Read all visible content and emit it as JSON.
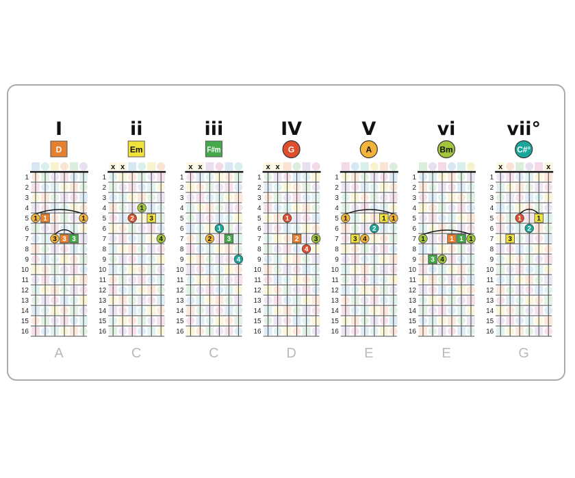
{
  "colors": {
    "A": "#f2b53a",
    "D": "#e6802e",
    "Em": "#f0e23b",
    "Fsm": "#45a84a",
    "G": "#df4f2d",
    "Bm": "#a2c53d",
    "Cdim": "#1ba69a",
    "border": "#a9a9a9",
    "key": "#b9b9b9"
  },
  "fret_numbers": [
    "1",
    "2",
    "3",
    "4",
    "5",
    "6",
    "7",
    "8",
    "9",
    "10",
    "11",
    "12",
    "13",
    "14",
    "15",
    "16"
  ],
  "chords": [
    {
      "numeral": "I",
      "name": "D",
      "shape": "square",
      "color": "D",
      "muted": [],
      "key": "A",
      "barres": [
        [
          5,
          1,
          6
        ],
        [
          7,
          3,
          5
        ]
      ],
      "notes": [
        [
          5,
          1,
          "circle",
          "A",
          "1"
        ],
        [
          5,
          2,
          "square",
          "D",
          "1"
        ],
        [
          5,
          6,
          "circle",
          "A",
          "1"
        ],
        [
          7,
          3,
          "circle",
          "A",
          "3"
        ],
        [
          7,
          4,
          "square",
          "D",
          "3"
        ],
        [
          7,
          5,
          "square",
          "Fsm",
          "3"
        ]
      ]
    },
    {
      "numeral": "ii",
      "name": "Em",
      "shape": "square",
      "color": "Em",
      "muted": [
        1,
        2
      ],
      "key": "C",
      "barres": [],
      "notes": [
        [
          4,
          4,
          "circle",
          "Bm",
          "1"
        ],
        [
          5,
          3,
          "circle",
          "G",
          "2"
        ],
        [
          5,
          5,
          "square",
          "Em",
          "3"
        ],
        [
          7,
          6,
          "circle",
          "Bm",
          "4"
        ]
      ]
    },
    {
      "numeral": "iii",
      "name": "F#m",
      "shape": "square",
      "color": "Fsm",
      "muted": [
        1,
        2
      ],
      "key": "C",
      "barres": [],
      "notes": [
        [
          6,
          4,
          "circle",
          "Cdim",
          "1"
        ],
        [
          7,
          3,
          "circle",
          "A",
          "2"
        ],
        [
          7,
          5,
          "square",
          "Fsm",
          "3"
        ],
        [
          9,
          6,
          "circle",
          "Cdim",
          "4"
        ]
      ]
    },
    {
      "numeral": "IV",
      "name": "G",
      "shape": "circle",
      "color": "G",
      "muted": [
        1,
        2
      ],
      "key": "D",
      "barres": [],
      "notes": [
        [
          5,
          3,
          "circle",
          "G",
          "1"
        ],
        [
          7,
          4,
          "square",
          "D",
          "2"
        ],
        [
          7,
          6,
          "circle",
          "Bm",
          "3"
        ],
        [
          8,
          5,
          "circle",
          "G",
          "4"
        ]
      ]
    },
    {
      "numeral": "V",
      "name": "A",
      "shape": "circle",
      "color": "A",
      "muted": [],
      "key": "E",
      "barres": [
        [
          5,
          1,
          6
        ]
      ],
      "notes": [
        [
          5,
          1,
          "circle",
          "A",
          "1"
        ],
        [
          5,
          5,
          "square",
          "Em",
          "1"
        ],
        [
          5,
          6,
          "circle",
          "A",
          "1"
        ],
        [
          6,
          4,
          "circle",
          "Cdim",
          "2"
        ],
        [
          7,
          2,
          "square",
          "Em",
          "3"
        ],
        [
          7,
          3,
          "circle",
          "A",
          "4"
        ]
      ]
    },
    {
      "numeral": "vi",
      "name": "Bm",
      "shape": "circle",
      "color": "Bm",
      "muted": [],
      "key": "E",
      "barres": [
        [
          7,
          1,
          6
        ]
      ],
      "notes": [
        [
          7,
          1,
          "circle",
          "Bm",
          "1"
        ],
        [
          7,
          4,
          "square",
          "D",
          "1"
        ],
        [
          7,
          5,
          "square",
          "Fsm",
          "1"
        ],
        [
          7,
          6,
          "circle",
          "Bm",
          "1"
        ],
        [
          9,
          2,
          "square",
          "Fsm",
          "3"
        ],
        [
          9,
          3,
          "circle",
          "Bm",
          "4"
        ]
      ]
    },
    {
      "numeral": "vii°",
      "name": "C#°",
      "shape": "circle",
      "color": "Cdim",
      "muted": [
        1,
        6
      ],
      "key": "G",
      "barres": [
        [
          5,
          3,
          5
        ]
      ],
      "notes": [
        [
          5,
          3,
          "circle",
          "G",
          "1"
        ],
        [
          5,
          5,
          "square",
          "Em",
          "1"
        ],
        [
          6,
          4,
          "circle",
          "Cdim",
          "2"
        ],
        [
          7,
          2,
          "square",
          "Em",
          "3"
        ]
      ]
    }
  ],
  "mute_symbol": "x"
}
